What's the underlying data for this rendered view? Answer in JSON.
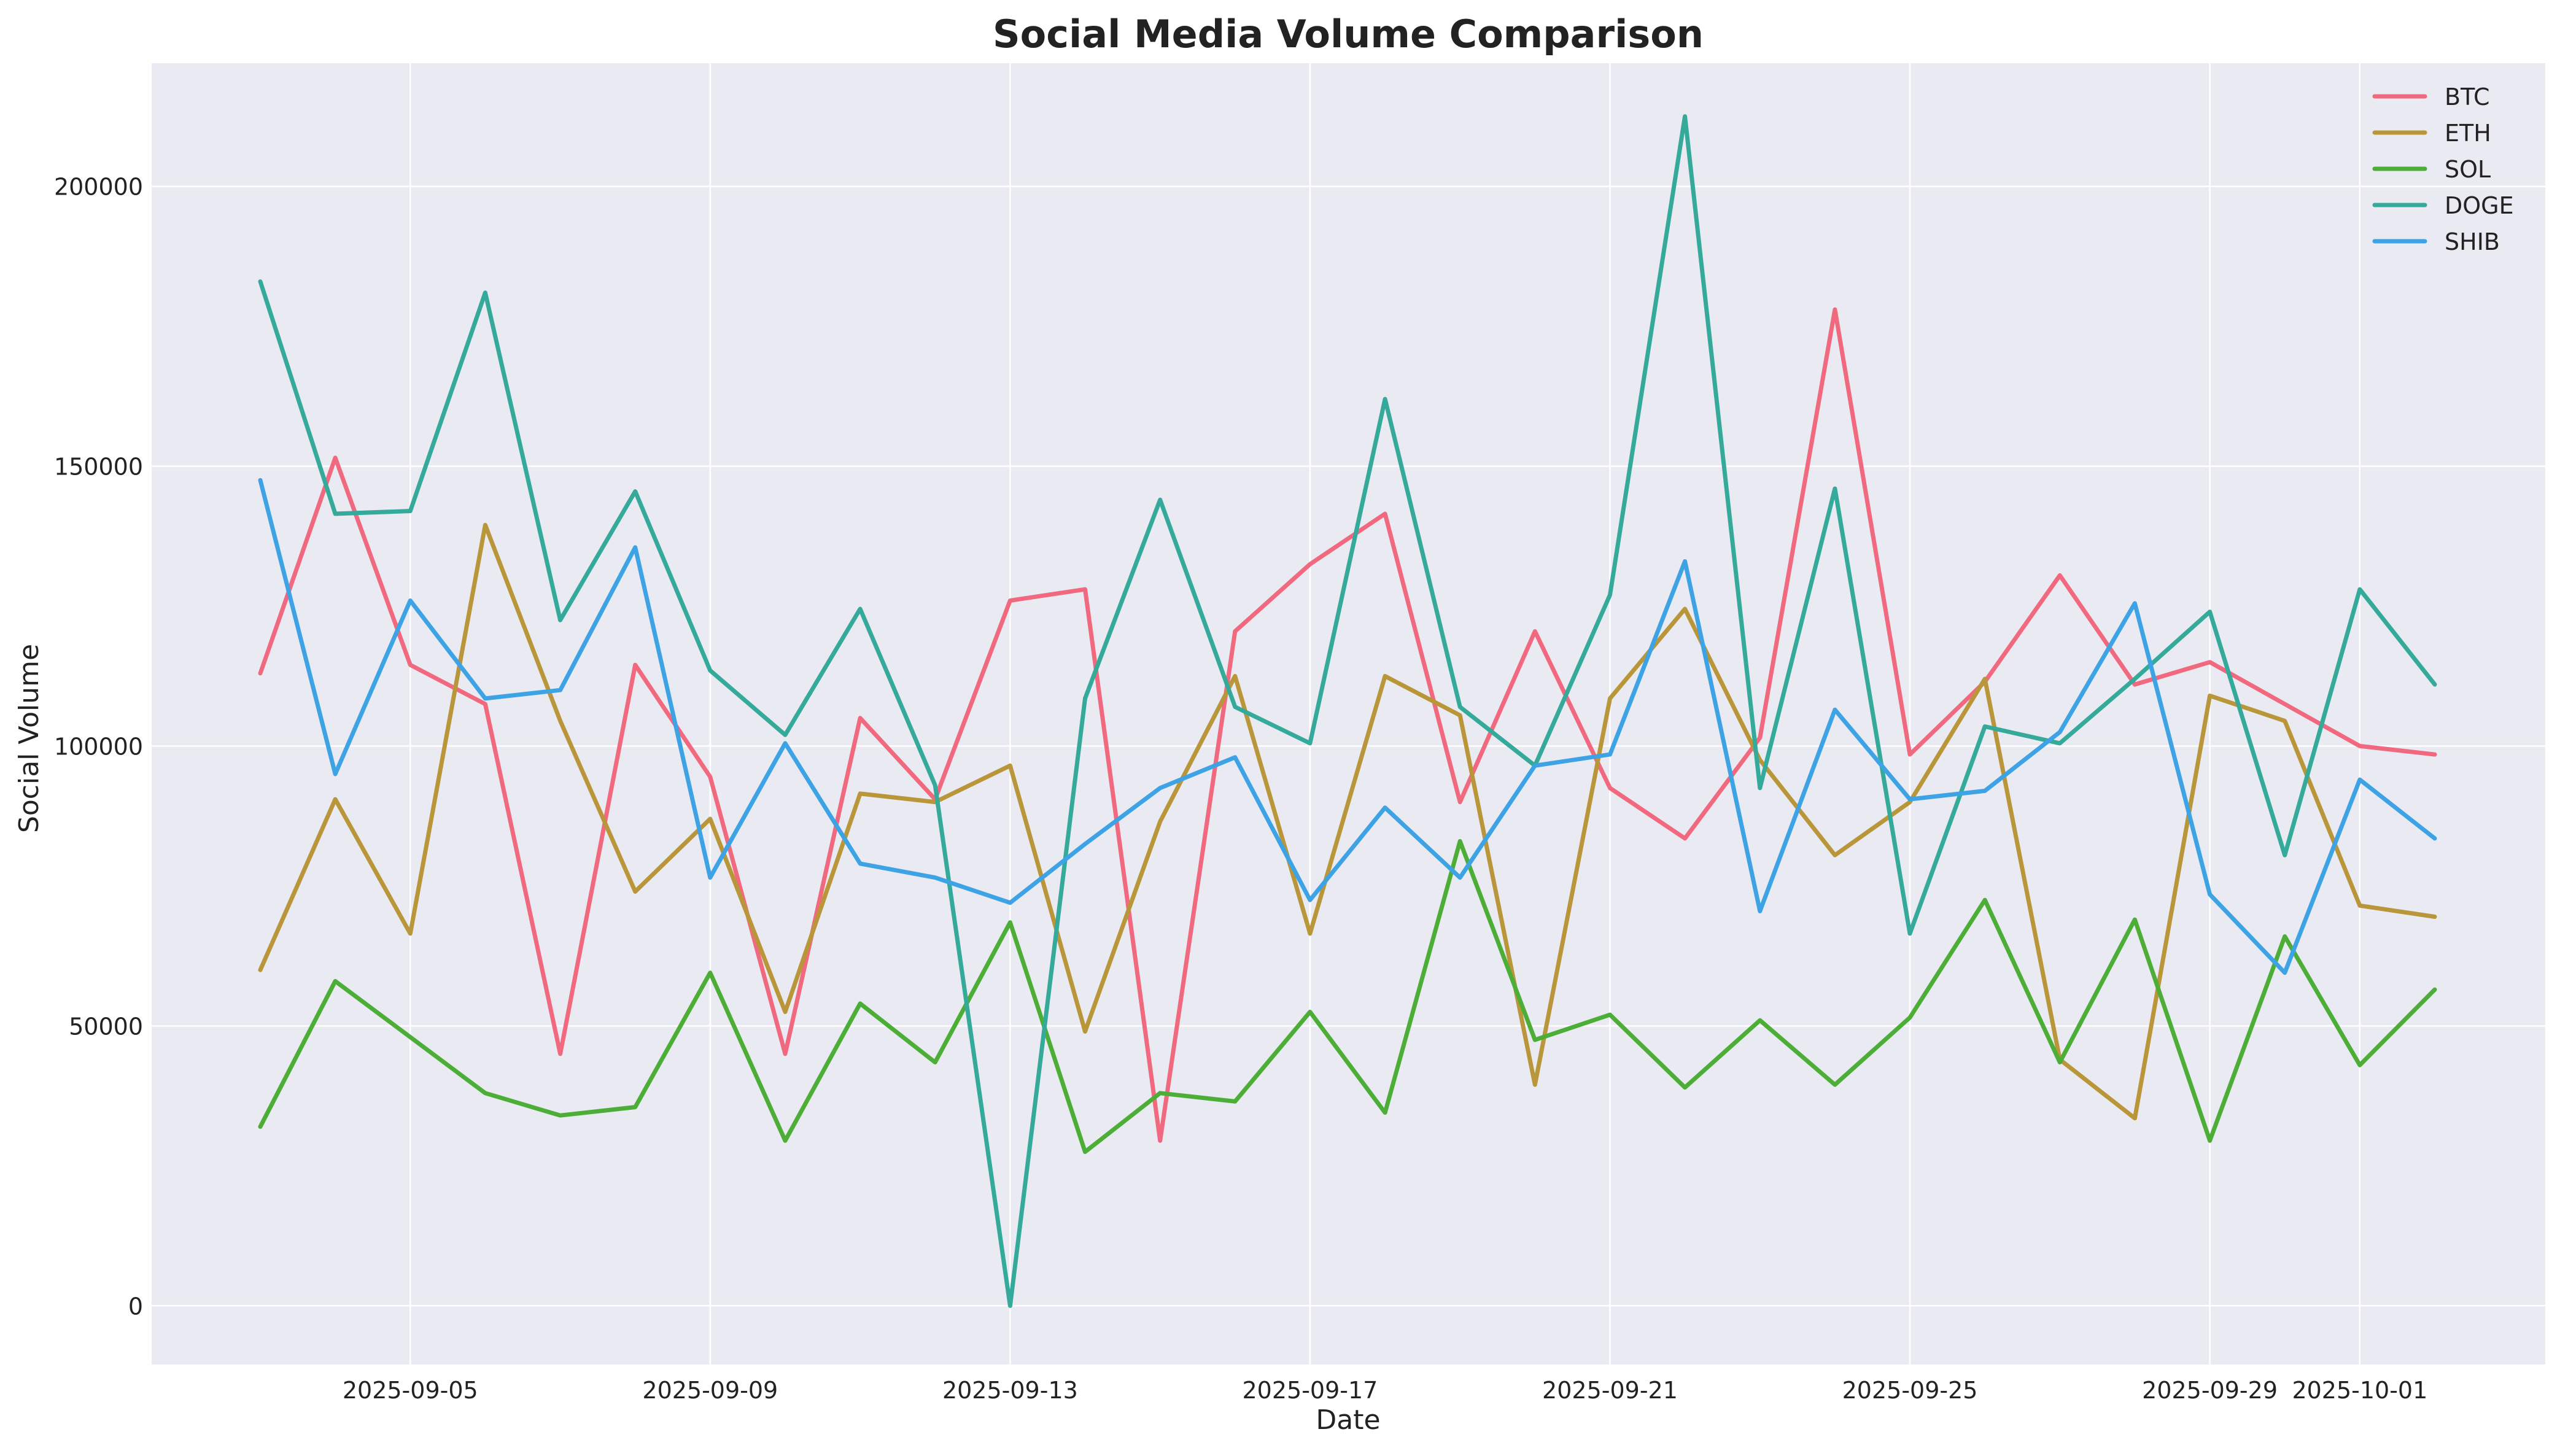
{
  "chart_data": {
    "type": "line",
    "title": "Social Media Volume Comparison",
    "xlabel": "Date",
    "ylabel": "Social Volume",
    "ylim": [
      -10500,
      222000
    ],
    "grid": true,
    "legend_position": "top-right",
    "x": [
      "2025-09-03",
      "2025-09-04",
      "2025-09-05",
      "2025-09-06",
      "2025-09-07",
      "2025-09-08",
      "2025-09-09",
      "2025-09-10",
      "2025-09-11",
      "2025-09-12",
      "2025-09-13",
      "2025-09-14",
      "2025-09-15",
      "2025-09-16",
      "2025-09-17",
      "2025-09-18",
      "2025-09-19",
      "2025-09-20",
      "2025-09-21",
      "2025-09-22",
      "2025-09-23",
      "2025-09-24",
      "2025-09-25",
      "2025-09-26",
      "2025-09-27",
      "2025-09-28",
      "2025-09-29",
      "2025-09-30",
      "2025-10-01",
      "2025-10-02"
    ],
    "x_ticks": [
      "2025-09-05",
      "2025-09-09",
      "2025-09-13",
      "2025-09-17",
      "2025-09-21",
      "2025-09-25",
      "2025-09-29",
      "2025-10-01"
    ],
    "y_ticks": [
      0,
      50000,
      100000,
      150000,
      200000
    ],
    "series": [
      {
        "name": "BTC",
        "color": "#f0697e",
        "values": [
          113000,
          151500,
          114500,
          107500,
          45000,
          114500,
          94500,
          45000,
          105000,
          90500,
          126000,
          128000,
          29500,
          120500,
          132500,
          141500,
          90000,
          120500,
          92500,
          83500,
          101500,
          178000,
          98500,
          111500,
          130500,
          111000,
          115000,
          107500,
          100000,
          98500
        ]
      },
      {
        "name": "ETH",
        "color": "#b9963a",
        "values": [
          60000,
          90500,
          66500,
          139500,
          104500,
          74000,
          87000,
          52500,
          91500,
          90000,
          96500,
          49000,
          86500,
          112500,
          66500,
          112500,
          105500,
          39500,
          108500,
          124500,
          97500,
          80500,
          90000,
          112000,
          44000,
          33500,
          109000,
          104500,
          71500,
          69500
        ]
      },
      {
        "name": "SOL",
        "color": "#4dae37",
        "values": [
          32000,
          58000,
          48000,
          38000,
          34000,
          35500,
          59500,
          29500,
          54000,
          43500,
          68500,
          27500,
          38000,
          36500,
          52500,
          34500,
          83000,
          47500,
          52000,
          39000,
          51000,
          39500,
          51500,
          72500,
          43500,
          69000,
          29500,
          66000,
          43000,
          56500
        ]
      },
      {
        "name": "DOGE",
        "color": "#35aa9a",
        "values": [
          183000,
          141500,
          142000,
          181000,
          122500,
          145500,
          113500,
          102000,
          124500,
          93000,
          0,
          108500,
          144000,
          107000,
          100500,
          162000,
          107000,
          96500,
          127000,
          212500,
          92500,
          146000,
          66500,
          103500,
          100500,
          112000,
          124000,
          80500,
          128000,
          111000
        ]
      },
      {
        "name": "SHIB",
        "color": "#3ea3e5",
        "values": [
          147500,
          95000,
          126000,
          108500,
          110000,
          135500,
          76500,
          100500,
          79000,
          76500,
          72000,
          82500,
          92500,
          98000,
          72500,
          89000,
          76500,
          96500,
          98500,
          133000,
          70500,
          106500,
          90500,
          92000,
          102500,
          125500,
          73500,
          59500,
          94000,
          83500
        ]
      }
    ]
  }
}
